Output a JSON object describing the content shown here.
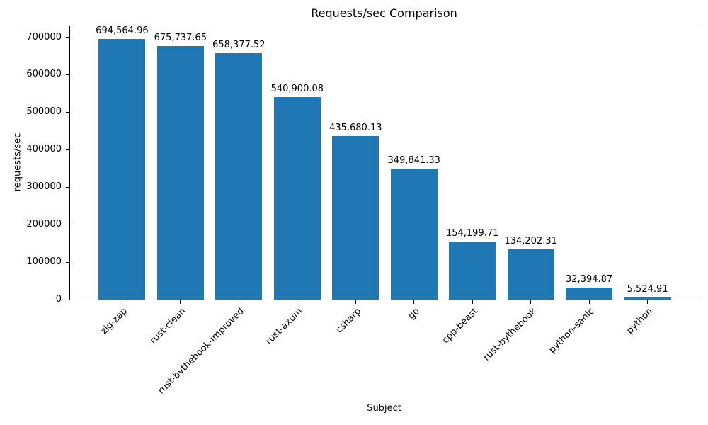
{
  "chart_data": {
    "type": "bar",
    "title": "Requests/sec Comparison",
    "xlabel": "Subject",
    "ylabel": "requests/sec",
    "categories": [
      "zig-zap",
      "rust-clean",
      "rust-bythebook-improved",
      "rust-axum",
      "csharp",
      "go",
      "cpp-beast",
      "rust-bythebook",
      "python-sanic",
      "python"
    ],
    "values": [
      694564.96,
      675737.65,
      658377.52,
      540900.08,
      435680.13,
      349841.33,
      154199.71,
      134202.31,
      32394.87,
      5524.91
    ],
    "bar_labels": [
      "694,564.96",
      "675,737.65",
      "658,377.52",
      "540,900.08",
      "435,680.13",
      "349,841.33",
      "154,199.71",
      "134,202.31",
      "32,394.87",
      "5,524.91"
    ],
    "yticks": [
      0,
      100000,
      200000,
      300000,
      400000,
      500000,
      600000,
      700000
    ],
    "ytick_labels": [
      "0",
      "100000",
      "200000",
      "300000",
      "400000",
      "500000",
      "600000",
      "700000"
    ],
    "ylim": [
      0,
      729293
    ],
    "xlim": [
      -0.89,
      9.89
    ],
    "bar_width_units": 0.8,
    "x_tick_rotation_deg": 45,
    "bar_color": "#1f77b4",
    "axis_color": "#000000",
    "grid": false,
    "legend": null
  }
}
